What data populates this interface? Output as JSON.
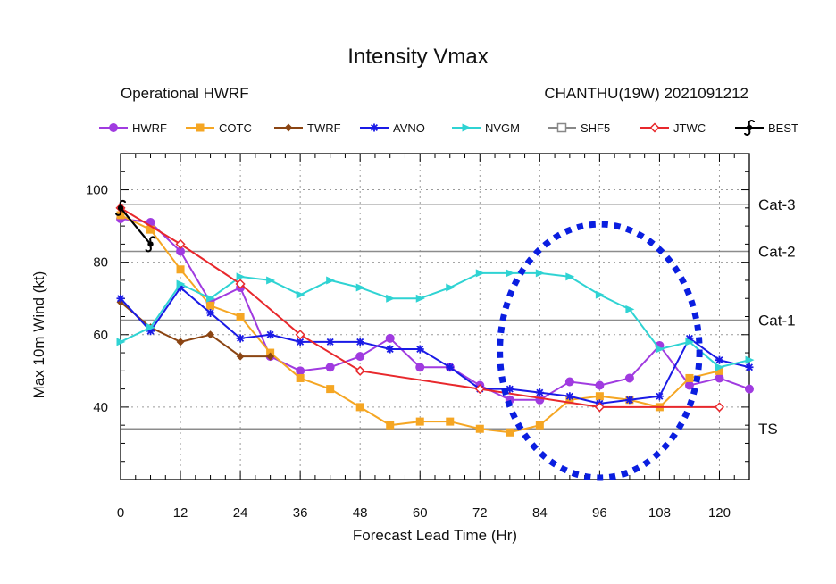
{
  "chart_data": {
    "type": "line",
    "title": "Intensity Vmax",
    "subtitle_left": "Operational HWRF",
    "subtitle_right": "CHANTHU(19W) 2021091212",
    "xlabel": "Forecast Lead Time (Hr)",
    "ylabel": "Max 10m Wind (kt)",
    "xlim": [
      0,
      126
    ],
    "ylim": [
      20,
      110
    ],
    "xticks": [
      0,
      12,
      24,
      36,
      48,
      60,
      72,
      84,
      96,
      108,
      120
    ],
    "yticks": [
      40,
      60,
      80,
      100
    ],
    "category_lines": [
      {
        "label": "Cat-3",
        "value": 96
      },
      {
        "label": "Cat-2",
        "value": 83
      },
      {
        "label": "Cat-1",
        "value": 64
      },
      {
        "label": "TS",
        "value": 34
      }
    ],
    "series": [
      {
        "name": "HWRF",
        "color": "#a03be0",
        "marker": "circle",
        "x": [
          0,
          6,
          12,
          18,
          24,
          30,
          36,
          42,
          48,
          54,
          60,
          66,
          72,
          78,
          84,
          90,
          96,
          102,
          108,
          114,
          120,
          126
        ],
        "y": [
          92,
          91,
          83,
          69,
          73,
          54,
          50,
          51,
          54,
          59,
          51,
          51,
          46,
          42,
          42,
          47,
          46,
          48,
          57,
          46,
          48,
          45
        ]
      },
      {
        "name": "COTC",
        "color": "#f5a623",
        "marker": "square",
        "x": [
          0,
          6,
          12,
          18,
          24,
          30,
          36,
          42,
          48,
          54,
          60,
          66,
          72,
          78,
          84,
          90,
          96,
          102,
          108,
          114,
          120
        ],
        "y": [
          93,
          89,
          78,
          68,
          65,
          55,
          48,
          45,
          40,
          35,
          36,
          36,
          34,
          33,
          35,
          42,
          43,
          42,
          40,
          48,
          50
        ]
      },
      {
        "name": "TWRF",
        "color": "#8b4513",
        "marker": "diamond",
        "x": [
          0,
          6,
          12,
          18,
          24,
          30
        ],
        "y": [
          69,
          62,
          58,
          60,
          54,
          54
        ]
      },
      {
        "name": "AVNO",
        "color": "#1a1ae6",
        "marker": "star",
        "x": [
          0,
          6,
          12,
          18,
          24,
          30,
          36,
          42,
          48,
          54,
          60,
          66,
          72,
          78,
          84,
          90,
          96,
          102,
          108,
          114,
          120,
          126
        ],
        "y": [
          70,
          61,
          73,
          66,
          59,
          60,
          58,
          58,
          58,
          56,
          56,
          51,
          45,
          45,
          44,
          43,
          41,
          42,
          43,
          59,
          53,
          51
        ]
      },
      {
        "name": "NVGM",
        "color": "#2fd3d3",
        "marker": "triangle",
        "x": [
          0,
          6,
          12,
          18,
          24,
          30,
          36,
          42,
          48,
          54,
          60,
          66,
          72,
          78,
          84,
          90,
          96,
          102,
          108,
          114,
          120,
          126
        ],
        "y": [
          58,
          62,
          74,
          70,
          76,
          75,
          71,
          75,
          73,
          70,
          70,
          73,
          77,
          77,
          77,
          76,
          71,
          67,
          56,
          58,
          51,
          53
        ]
      },
      {
        "name": "SHF5",
        "color": "#888888",
        "marker": "square-open",
        "x": [],
        "y": []
      },
      {
        "name": "JTWC",
        "color": "#e8282c",
        "marker": "diamond-open",
        "x": [
          0,
          12,
          24,
          36,
          48,
          72,
          96,
          120
        ],
        "y": [
          95,
          85,
          74,
          60,
          50,
          45,
          40,
          40
        ]
      },
      {
        "name": "BEST",
        "color": "#000000",
        "marker": "cyclone",
        "x": [
          0,
          6
        ],
        "y": [
          95,
          85
        ]
      }
    ],
    "annotation": {
      "type": "dotted-circle",
      "color": "#0a1ee0",
      "center_x": 96,
      "center_y": 55.5,
      "radius_x": 20,
      "radius_y": 35
    }
  }
}
